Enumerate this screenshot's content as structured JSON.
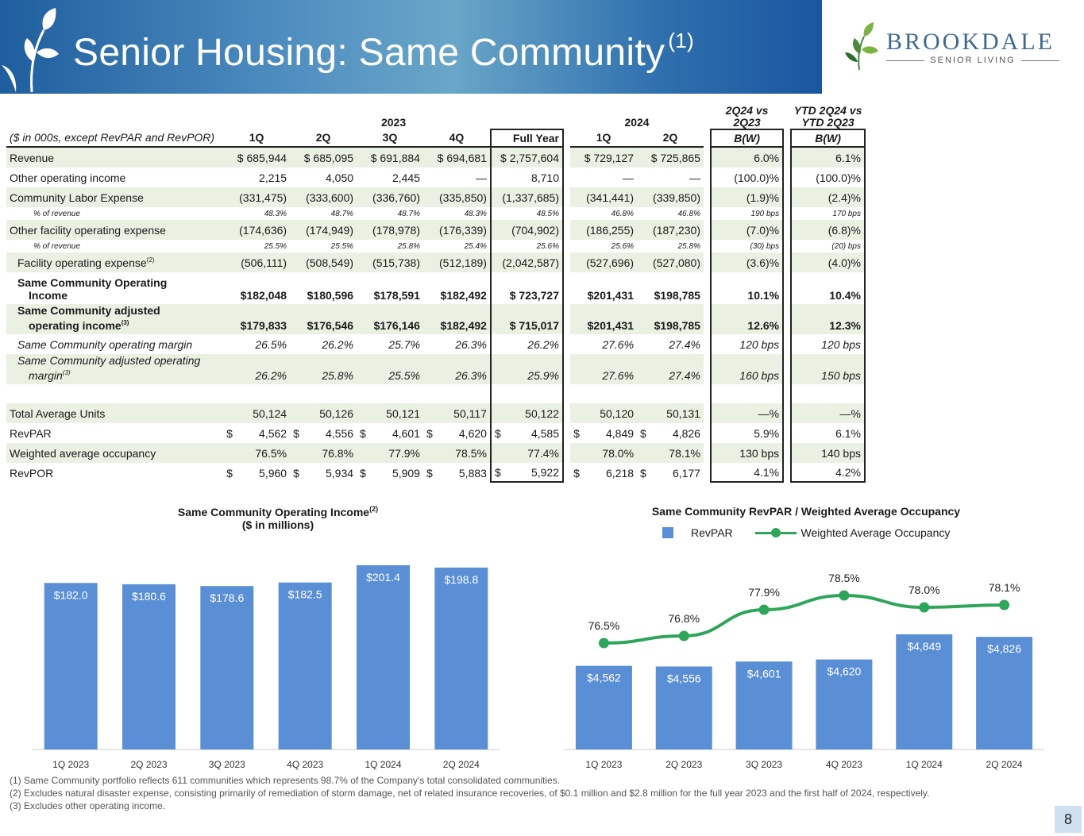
{
  "header": {
    "title": "Senior Housing: Same Community",
    "title_sup": "(1)"
  },
  "logo": {
    "name": "BROOKDALE",
    "sub": "SENIOR LIVING"
  },
  "table": {
    "year_2023": "2023",
    "year_2024": "2024",
    "cmp1": [
      "2Q24 vs",
      "2Q23"
    ],
    "cmp2": [
      "YTD 2Q24 vs",
      "YTD 2Q23"
    ],
    "header_label": "($ in 000s, except RevPAR and RevPOR)",
    "columns": [
      "1Q",
      "2Q",
      "3Q",
      "4Q",
      "Full Year",
      "1Q",
      "2Q",
      "B(W)",
      "B(W)"
    ],
    "rows": [
      {
        "label": "Revenue",
        "v": [
          "$ 685,944",
          "$ 685,095",
          "$ 691,884",
          "$ 694,681",
          "$ 2,757,604",
          "$ 729,127",
          "$ 725,865",
          "6.0%",
          "6.1%"
        ]
      },
      {
        "label": "Other operating income",
        "v": [
          "2,215",
          "4,050",
          "2,445",
          "—",
          "8,710",
          "—",
          "—",
          "(100.0)%",
          "(100.0)%"
        ]
      },
      {
        "label": "Community Labor Expense",
        "v": [
          "(331,475)",
          "(333,600)",
          "(336,760)",
          "(335,850)",
          "(1,337,685)",
          "(341,441)",
          "(339,850)",
          "(1.9)%",
          "(2.4)%"
        ]
      },
      {
        "label": "% of revenue",
        "v": [
          "48.3%",
          "48.7%",
          "48.7%",
          "48.3%",
          "48.5%",
          "46.8%",
          "46.8%",
          "190 bps",
          "170 bps"
        ]
      },
      {
        "label": "Other facility operating expense",
        "v": [
          "(174,636)",
          "(174,949)",
          "(178,978)",
          "(176,339)",
          "(704,902)",
          "(186,255)",
          "(187,230)",
          "(7.0)%",
          "(6.8)%"
        ]
      },
      {
        "label": "% of revenue",
        "v": [
          "25.5%",
          "25.5%",
          "25.8%",
          "25.4%",
          "25.6%",
          "25.6%",
          "25.8%",
          "(30) bps",
          "(20) bps"
        ]
      },
      {
        "label": "Facility operating expense",
        "sup": "(2)",
        "v": [
          "(506,111)",
          "(508,549)",
          "(515,738)",
          "(512,189)",
          "(2,042,587)",
          "(527,696)",
          "(527,080)",
          "(3.6)%",
          "(4.0)%"
        ]
      },
      {
        "label1": "Same Community Operating",
        "label2": "Income",
        "v": [
          "$182,048",
          "$180,596",
          "$178,591",
          "$182,492",
          "$ 723,727",
          "$201,431",
          "$198,785",
          "10.1%",
          "10.4%"
        ]
      },
      {
        "label1": "Same Community adjusted",
        "label2": "operating income",
        "sup": "(3)",
        "v": [
          "$179,833",
          "$176,546",
          "$176,146",
          "$182,492",
          "$ 715,017",
          "$201,431",
          "$198,785",
          "12.6%",
          "12.3%"
        ]
      },
      {
        "label": "Same Community operating margin",
        "v": [
          "26.5%",
          "26.2%",
          "25.7%",
          "26.3%",
          "26.2%",
          "27.6%",
          "27.4%",
          "120 bps",
          "120 bps"
        ]
      },
      {
        "label1": "Same Community adjusted operating",
        "label2": "margin",
        "sup": "(3)",
        "v": [
          "26.2%",
          "25.8%",
          "25.5%",
          "26.3%",
          "25.9%",
          "27.6%",
          "27.4%",
          "160 bps",
          "150 bps"
        ]
      },
      {
        "label": "Total Average Units",
        "v": [
          "50,124",
          "50,126",
          "50,121",
          "50,117",
          "50,122",
          "50,120",
          "50,131",
          "—%",
          "—%"
        ]
      },
      {
        "label": "RevPAR",
        "dollar": true,
        "v": [
          "4,562",
          "4,556",
          "4,601",
          "4,620",
          "4,585",
          "4,849",
          "4,826",
          "5.9%",
          "6.1%"
        ]
      },
      {
        "label": "Weighted average occupancy",
        "v": [
          "76.5%",
          "76.8%",
          "77.9%",
          "78.5%",
          "77.4%",
          "78.0%",
          "78.1%",
          "130 bps",
          "140 bps"
        ]
      },
      {
        "label": "RevPOR",
        "dollar": true,
        "v": [
          "5,960",
          "5,934",
          "5,909",
          "5,883",
          "5,922",
          "6,218",
          "6,177",
          "4.1%",
          "4.2%"
        ]
      }
    ]
  },
  "chart_data": [
    {
      "type": "bar",
      "title": "Same Community Operating  Income",
      "title_sup": "(2)",
      "subtitle": "($ in millions)",
      "categories": [
        "1Q 2023",
        "2Q 2023",
        "3Q 2023",
        "4Q 2023",
        "1Q 2024",
        "2Q 2024"
      ],
      "values": [
        182.0,
        180.6,
        178.6,
        182.5,
        201.4,
        198.8
      ],
      "labels": [
        "$182.0",
        "$180.6",
        "$178.6",
        "$182.5",
        "$201.4",
        "$198.8"
      ],
      "ylim": [
        0,
        210
      ],
      "color": "#5a8fd6"
    },
    {
      "type": "bar",
      "title": "Same Community RevPAR / Weighted Average Occupancy",
      "categories": [
        "1Q 2023",
        "2Q 2023",
        "3Q 2023",
        "4Q 2023",
        "1Q 2024",
        "2Q 2024"
      ],
      "series": [
        {
          "name": "RevPAR",
          "type": "bar",
          "values": [
            4562,
            4556,
            4601,
            4620,
            4849,
            4826
          ],
          "labels": [
            "$4,562",
            "$4,556",
            "$4,601",
            "$4,620",
            "$4,849",
            "$4,826"
          ],
          "color": "#5a8fd6"
        },
        {
          "name": "Weighted Average Occupancy",
          "type": "line",
          "values": [
            76.5,
            76.8,
            77.9,
            78.5,
            78.0,
            78.1
          ],
          "labels": [
            "76.5%",
            "76.8%",
            "77.9%",
            "78.5%",
            "78.0%",
            "78.1%"
          ],
          "color": "#2fa55a"
        }
      ],
      "legend": "top"
    }
  ],
  "footnotes": [
    "(1) Same Community portfolio reflects 611 communities which represents 98.7% of the Company's total consolidated communities.",
    "(2) Excludes natural disaster expense, consisting primarily of remediation of storm damage, net of related insurance recoveries, of $0.1 million and $2.8 million for the full year 2023 and the first half of 2024, respectively.",
    "(3) Excludes other operating income."
  ],
  "page_number": "8"
}
